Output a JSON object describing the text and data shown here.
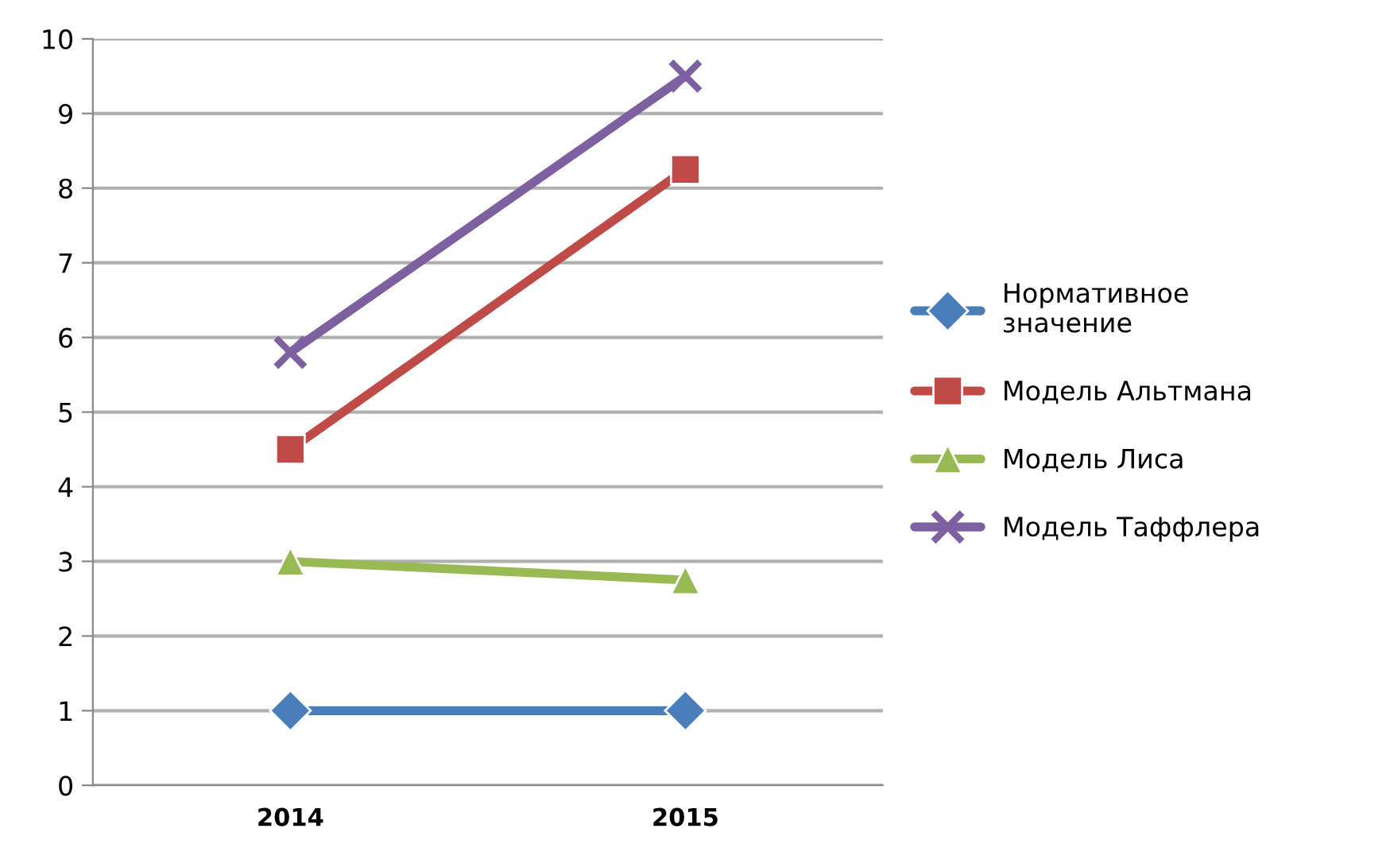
{
  "chart_data": {
    "type": "line",
    "categories": [
      "2014",
      "2015"
    ],
    "series": [
      {
        "name": "Нормативное\nзначение",
        "color": "#4a7ebb",
        "values": [
          1,
          1
        ],
        "marker": "diamond"
      },
      {
        "name": "Модель Альтмана",
        "color": "#be4b48",
        "values": [
          4.5,
          8.25
        ],
        "marker": "square"
      },
      {
        "name": "Модель Лиса",
        "color": "#98b954",
        "values": [
          3.0,
          2.75
        ],
        "marker": "triangle"
      },
      {
        "name": "Модель Таффлера",
        "color": "#7d60a0",
        "values": [
          5.8,
          9.5
        ],
        "marker": "cross"
      }
    ],
    "ylim": [
      0,
      10
    ],
    "yticks": [
      0,
      1,
      2,
      3,
      4,
      5,
      6,
      7,
      8,
      9,
      10
    ],
    "grid": "y",
    "legend": "right",
    "line_style": "solid"
  }
}
